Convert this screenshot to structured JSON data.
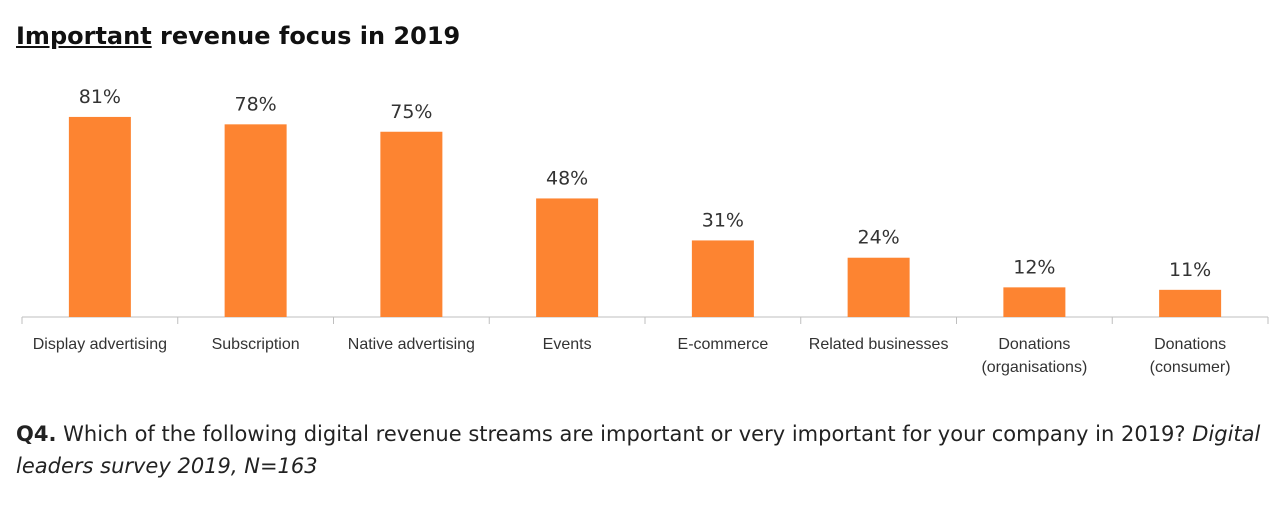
{
  "chart_data": {
    "type": "bar",
    "title": [
      "Important",
      "revenue focus in 2019"
    ],
    "categories": [
      "Display advertising",
      "Subscription",
      "Native advertising",
      "Events",
      "E-commerce",
      "Related businesses",
      "Donations (organisations)",
      "Donations (consumer)"
    ],
    "values": [
      81,
      78,
      75,
      48,
      31,
      24,
      12,
      11
    ],
    "value_labels": [
      "81%",
      "78%",
      "75%",
      "48%",
      "31%",
      "24%",
      "12%",
      "11%"
    ],
    "color": "#fd8431",
    "caption": {
      "question_number": "Q4.",
      "question": "Which of the following digital revenue streams are important or very important for your company in 2019?",
      "source": "Digital leaders survey 2019, N=163"
    }
  }
}
